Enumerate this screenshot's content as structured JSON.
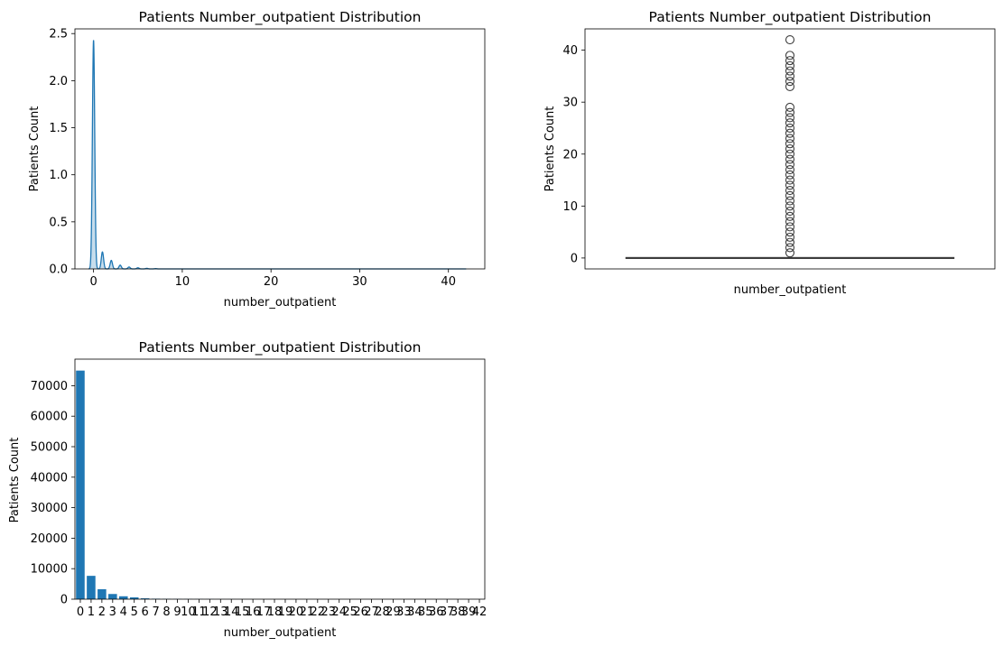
{
  "chart_data": [
    {
      "type": "area",
      "kind": "kde",
      "title": "Patients Number_outpatient Distribution",
      "xlabel": "number_outpatient",
      "ylabel": "Patients Count",
      "xlim": [
        -2.1,
        44.1
      ],
      "ylim": [
        0,
        2.55
      ],
      "xticks": [
        0,
        10,
        20,
        30,
        40
      ],
      "xtick_labels": [
        "0",
        "10",
        "20",
        "30",
        "40"
      ],
      "yticks": [
        0,
        0.5,
        1.0,
        1.5,
        2.0,
        2.5
      ],
      "ytick_labels": [
        "0.0",
        "0.5",
        "1.0",
        "1.5",
        "2.0",
        "2.5"
      ],
      "peaks": [
        {
          "x": 0,
          "y": 2.43
        },
        {
          "x": 1,
          "y": 0.18
        },
        {
          "x": 2,
          "y": 0.09
        },
        {
          "x": 3,
          "y": 0.04
        },
        {
          "x": 4,
          "y": 0.02
        },
        {
          "x": 5,
          "y": 0.012
        },
        {
          "x": 6,
          "y": 0.006
        },
        {
          "x": 7,
          "y": 0.003
        }
      ],
      "color": "#1f77b4"
    },
    {
      "type": "box",
      "title": "Patients Number_outpatient Distribution",
      "xlabel": "number_outpatient",
      "ylabel": "Patients Count",
      "ylim": [
        -2.1,
        44.1
      ],
      "yticks": [
        0,
        10,
        20,
        30,
        40
      ],
      "ytick_labels": [
        "0",
        "10",
        "20",
        "30",
        "40"
      ],
      "median": 0,
      "q1": 0,
      "q3": 0,
      "whisker_low": 0,
      "whisker_high": 0,
      "outliers": [
        1,
        2,
        3,
        4,
        5,
        6,
        7,
        8,
        9,
        10,
        11,
        12,
        13,
        14,
        15,
        16,
        17,
        18,
        19,
        20,
        21,
        22,
        23,
        24,
        25,
        26,
        27,
        28,
        29,
        33,
        34,
        35,
        36,
        37,
        38,
        39,
        42
      ],
      "color": "#1f77b4"
    },
    {
      "type": "bar",
      "title": "Patients Number_outpatient Distribution",
      "xlabel": "number_outpatient",
      "ylabel": "Patients Count",
      "ylim": [
        0,
        78700
      ],
      "yticks": [
        0,
        10000,
        20000,
        30000,
        40000,
        50000,
        60000,
        70000
      ],
      "ytick_labels": [
        "0",
        "10000",
        "20000",
        "30000",
        "40000",
        "50000",
        "60000",
        "70000"
      ],
      "categories": [
        "0",
        "1",
        "2",
        "3",
        "4",
        "5",
        "6",
        "7",
        "8",
        "9",
        "10",
        "11",
        "12",
        "13",
        "14",
        "15",
        "16",
        "17",
        "18",
        "19",
        "20",
        "21",
        "22",
        "23",
        "24",
        "25",
        "26",
        "27",
        "28",
        "29",
        "33",
        "34",
        "35",
        "36",
        "37",
        "38",
        "39",
        "42"
      ],
      "values": [
        74950,
        7650,
        3260,
        1700,
        950,
        590,
        280,
        160,
        95,
        72,
        55,
        42,
        30,
        25,
        22,
        14,
        14,
        12,
        6,
        5,
        6,
        4,
        5,
        2,
        3,
        2,
        2,
        2,
        1,
        2,
        2,
        2,
        1,
        1,
        1,
        1,
        1,
        1
      ],
      "color": "#1f77b4"
    }
  ]
}
